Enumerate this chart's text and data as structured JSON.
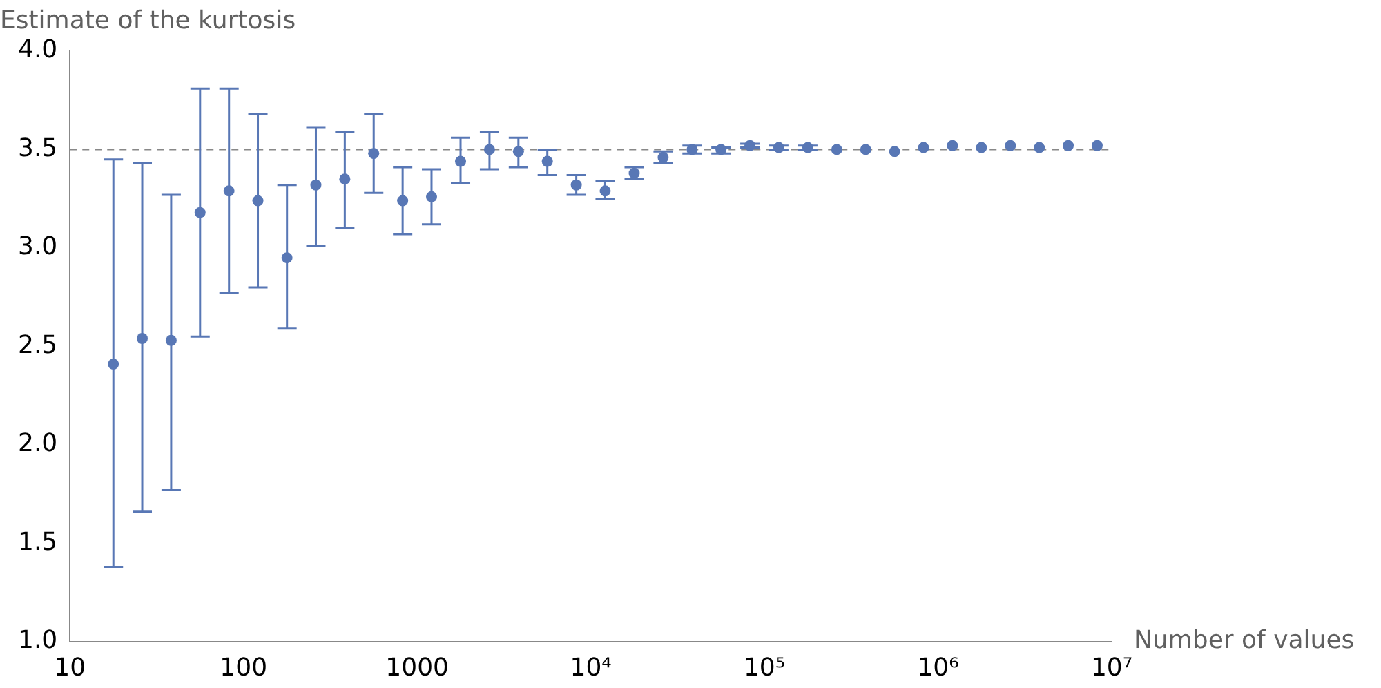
{
  "chart_data": {
    "type": "scatter",
    "xlabel": "Number of values",
    "ylabel": "Estimate of the kurtosis",
    "log": "x",
    "marker": "circle",
    "grid": false,
    "xlim": [
      10,
      10000000
    ],
    "xticks": [
      10,
      100,
      1000,
      {
        "value": 10000,
        "label": "10⁴"
      },
      {
        "value": 100000,
        "label": "10⁵"
      },
      {
        "value": 1000000,
        "label": "10⁶"
      },
      {
        "value": 10000000,
        "label": "10⁷"
      }
    ],
    "ylim": [
      1,
      4
    ],
    "yticks": [
      {
        "value": 1,
        "label": "1.0"
      },
      {
        "value": 1.5,
        "label": "1.5"
      },
      {
        "value": 2,
        "label": "2.0"
      },
      {
        "value": 2.5,
        "label": "2.5"
      },
      {
        "value": 3,
        "label": "3.0"
      },
      {
        "value": 3.5,
        "label": "3.5"
      },
      {
        "value": 4,
        "label": "4.0"
      }
    ],
    "ref_lines": [
      {
        "axis": "y",
        "value": 3.5,
        "color": "#888888",
        "line_style": "dashed"
      }
    ],
    "series": [
      {
        "color": "#5877b5",
        "x": [
          17.8,
          26.1,
          38.3,
          56.2,
          82.5,
          121,
          178,
          261,
          383,
          562,
          825,
          1210,
          1778,
          2610,
          3830,
          5620,
          8250,
          12100,
          17780,
          26100,
          38300,
          56200,
          82500,
          121000,
          177800,
          261000,
          383000,
          562000,
          825000,
          1210000,
          1778000,
          2610000,
          3830000,
          5620000,
          8250000
        ],
        "values": [
          2.41,
          2.54,
          2.53,
          3.18,
          3.29,
          3.24,
          2.95,
          3.32,
          3.35,
          3.48,
          3.24,
          3.26,
          3.44,
          3.5,
          3.49,
          3.44,
          3.32,
          3.29,
          3.38,
          3.46,
          3.5,
          3.5,
          3.52,
          3.51,
          3.51,
          3.5,
          3.5,
          3.49,
          3.51,
          3.52,
          3.51,
          3.52,
          3.51,
          3.52,
          3.52
        ],
        "errors": [
          [
            1.38,
            3.45
          ],
          [
            1.66,
            3.43
          ],
          [
            1.77,
            3.27
          ],
          [
            2.55,
            3.81
          ],
          [
            2.77,
            3.81
          ],
          [
            2.8,
            3.68
          ],
          [
            2.59,
            3.32
          ],
          [
            3.01,
            3.61
          ],
          [
            3.1,
            3.59
          ],
          [
            3.28,
            3.68
          ],
          [
            3.07,
            3.41
          ],
          [
            3.12,
            3.4
          ],
          [
            3.33,
            3.56
          ],
          [
            3.4,
            3.59
          ],
          [
            3.41,
            3.56
          ],
          [
            3.37,
            3.5
          ],
          [
            3.27,
            3.37
          ],
          [
            3.25,
            3.34
          ],
          [
            3.35,
            3.41
          ],
          [
            3.43,
            3.49
          ],
          [
            3.48,
            3.52
          ],
          [
            3.48,
            3.51
          ],
          [
            3.51,
            3.53
          ],
          [
            3.5,
            3.52
          ],
          [
            3.5,
            3.52
          ],
          null,
          null,
          null,
          null,
          null,
          null,
          null,
          null,
          null,
          null
        ]
      }
    ]
  }
}
